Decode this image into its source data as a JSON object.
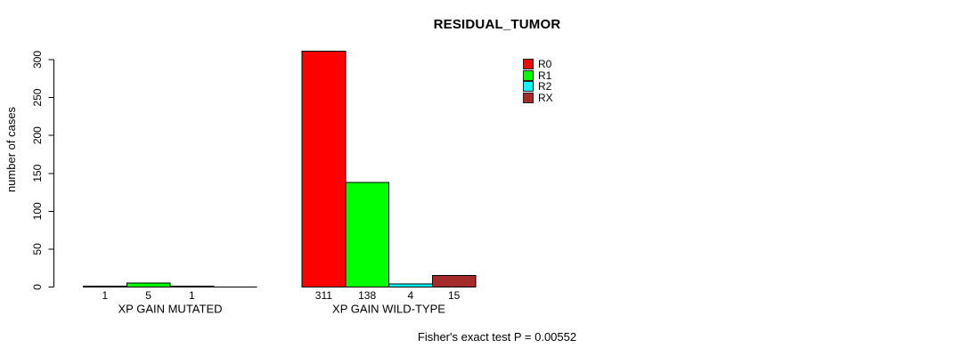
{
  "page": {
    "background": "#FFFFFF"
  },
  "title": "RESIDUAL_TUMOR",
  "footer": "Fisher's exact test P = 0.00552",
  "chart_data": {
    "type": "bar",
    "title": "RESIDUAL_TUMOR",
    "subtitle": "",
    "xlabel": "",
    "ylabel": "number of cases",
    "ylim": [
      0,
      300
    ],
    "yticks": [
      0,
      50,
      100,
      150,
      200,
      250,
      300
    ],
    "grid": false,
    "legend_position": "top-right",
    "categories": [
      "XP GAIN MUTATED",
      "XP GAIN WILD-TYPE"
    ],
    "series": [
      {
        "name": "R0",
        "color": "#FF0000",
        "values": [
          1,
          311
        ]
      },
      {
        "name": "R1",
        "color": "#00FF00",
        "values": [
          5,
          138
        ]
      },
      {
        "name": "R2",
        "color": "#00FFFF",
        "values": [
          1,
          4
        ]
      },
      {
        "name": "RX",
        "color": "#A52A2A",
        "values": [
          0,
          15
        ]
      }
    ],
    "bar_value_labels": [
      [
        "1",
        "5",
        "1",
        ""
      ],
      [
        "311",
        "138",
        "4",
        "15"
      ]
    ],
    "annotation": "Fisher's exact test P = 0.00552"
  }
}
